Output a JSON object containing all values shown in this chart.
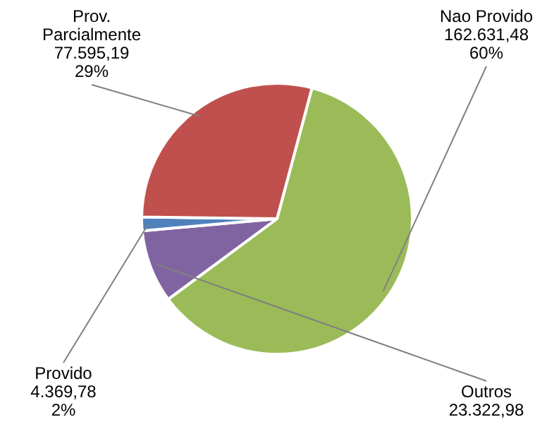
{
  "chart_data": {
    "type": "pie",
    "categories": [
      "Nao Provido",
      "Outros",
      "Provido",
      "Prov. Parcialmente"
    ],
    "values": [
      162631.48,
      23322.98,
      4369.78,
      77595.19
    ],
    "value_labels": [
      "162.631,48\n60%",
      "23.322,98",
      "4.369,78\n2%",
      "77.595,19\n29%"
    ],
    "colors": [
      "#9bbb59",
      "#8064a2",
      "#4f81bd",
      "#c0504d"
    ],
    "legend": false
  }
}
